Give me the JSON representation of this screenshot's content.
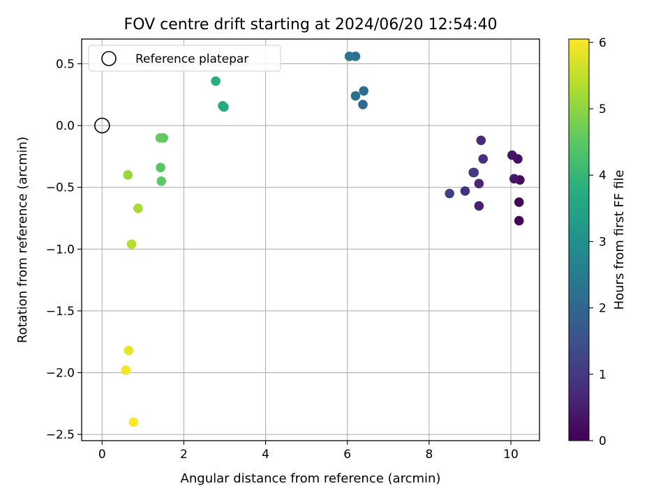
{
  "chart_data": {
    "type": "scatter",
    "title": "FOV centre drift starting at 2024/06/20 12:54:40",
    "xlabel": "Angular distance from reference (arcmin)",
    "ylabel": "Rotation from reference (arcmin)",
    "xlim": [
      -0.5,
      10.7
    ],
    "ylim": [
      -2.55,
      0.7
    ],
    "xticks": [
      0,
      2,
      4,
      6,
      8,
      10
    ],
    "xtick_labels": [
      "0",
      "2",
      "4",
      "6",
      "8",
      "10"
    ],
    "yticks": [
      0.5,
      0.0,
      -0.5,
      -1.0,
      -1.5,
      -2.0,
      -2.5
    ],
    "ytick_labels": [
      "0.5",
      "0.0",
      "−0.5",
      "−1.0",
      "−1.5",
      "−2.0",
      "−2.5"
    ],
    "grid": true,
    "legend": {
      "placement": "upper-left",
      "entries": [
        "Reference platepar"
      ]
    },
    "reference_point": {
      "x": 0.0,
      "y": 0.0
    },
    "colorbar": {
      "label": "Hours from first FF file",
      "range": [
        0,
        6.05
      ],
      "ticks": [
        0,
        1,
        2,
        3,
        4,
        5,
        6
      ],
      "tick_labels": [
        "0",
        "1",
        "2",
        "3",
        "4",
        "5",
        "6"
      ],
      "colormap": "viridis"
    },
    "points": [
      {
        "x": 10.2,
        "y": -0.77,
        "hours": 0.05
      },
      {
        "x": 10.2,
        "y": -0.62,
        "hours": 0.12
      },
      {
        "x": 10.22,
        "y": -0.44,
        "hours": 0.18
      },
      {
        "x": 10.17,
        "y": -0.27,
        "hours": 0.25
      },
      {
        "x": 10.03,
        "y": -0.24,
        "hours": 0.32
      },
      {
        "x": 10.08,
        "y": -0.43,
        "hours": 0.4
      },
      {
        "x": 9.22,
        "y": -0.65,
        "hours": 0.55
      },
      {
        "x": 9.22,
        "y": -0.47,
        "hours": 0.65
      },
      {
        "x": 9.27,
        "y": -0.12,
        "hours": 0.72
      },
      {
        "x": 9.32,
        "y": -0.27,
        "hours": 0.8
      },
      {
        "x": 8.88,
        "y": -0.53,
        "hours": 0.88
      },
      {
        "x": 9.08,
        "y": -0.38,
        "hours": 0.95
      },
      {
        "x": 9.1,
        "y": -0.38,
        "hours": 1.0
      },
      {
        "x": 8.5,
        "y": -0.55,
        "hours": 1.15
      },
      {
        "x": 6.38,
        "y": 0.17,
        "hours": 2.05
      },
      {
        "x": 6.4,
        "y": 0.28,
        "hours": 2.15
      },
      {
        "x": 6.2,
        "y": 0.24,
        "hours": 2.2
      },
      {
        "x": 6.2,
        "y": 0.56,
        "hours": 2.25
      },
      {
        "x": 6.05,
        "y": 0.56,
        "hours": 2.3
      },
      {
        "x": 2.98,
        "y": 0.15,
        "hours": 3.6
      },
      {
        "x": 2.95,
        "y": 0.16,
        "hours": 3.65
      },
      {
        "x": 2.78,
        "y": 0.36,
        "hours": 3.75
      },
      {
        "x": 1.43,
        "y": -0.34,
        "hours": 4.45
      },
      {
        "x": 1.45,
        "y": -0.45,
        "hours": 4.5
      },
      {
        "x": 1.5,
        "y": -0.1,
        "hours": 4.55
      },
      {
        "x": 1.42,
        "y": -0.1,
        "hours": 4.6
      },
      {
        "x": 0.63,
        "y": -0.4,
        "hours": 5.1
      },
      {
        "x": 0.88,
        "y": -0.67,
        "hours": 5.25
      },
      {
        "x": 0.72,
        "y": -0.96,
        "hours": 5.35
      },
      {
        "x": 0.65,
        "y": -1.82,
        "hours": 5.85
      },
      {
        "x": 0.58,
        "y": -1.98,
        "hours": 5.95
      },
      {
        "x": 0.77,
        "y": -2.4,
        "hours": 6.02
      }
    ]
  }
}
